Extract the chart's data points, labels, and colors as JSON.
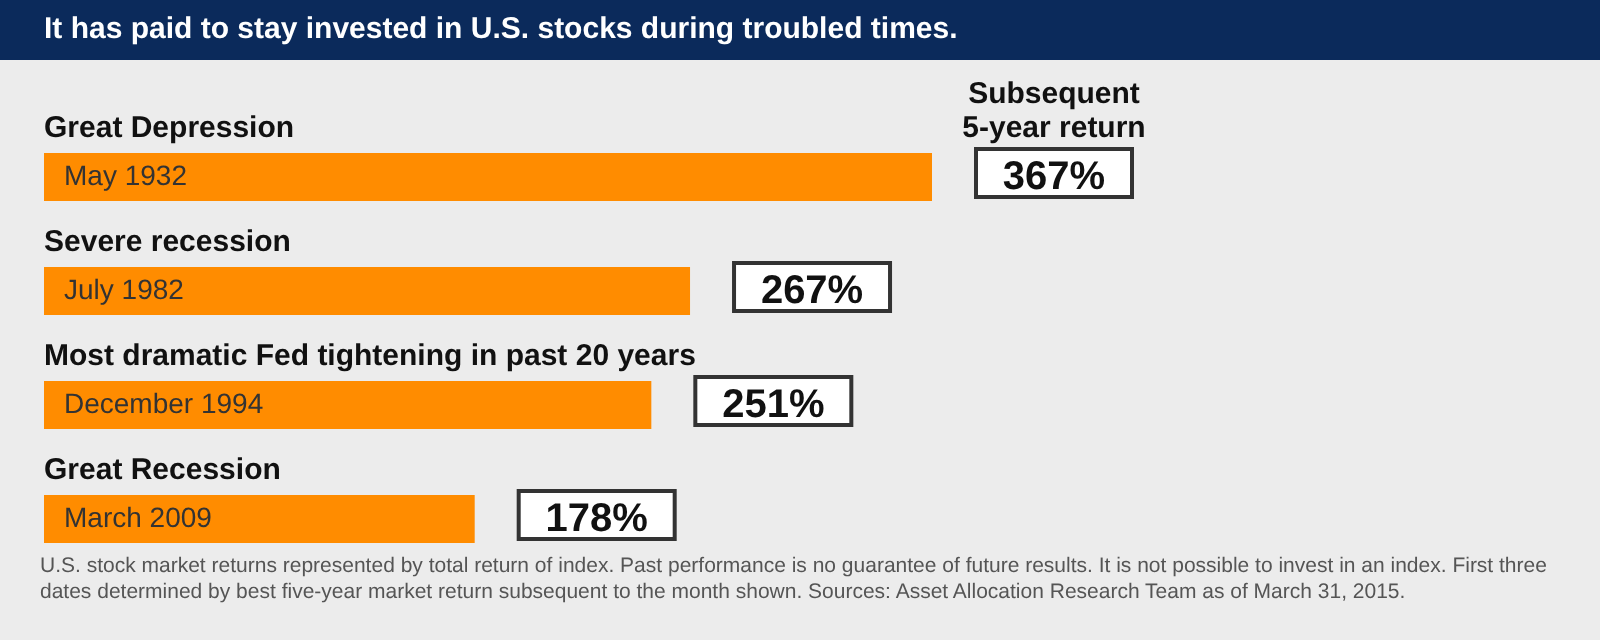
{
  "chart_data": {
    "type": "bar",
    "orientation": "horizontal",
    "title": "It has paid to stay invested in U.S. stocks during troubled times.",
    "categories": [
      "May 1932",
      "July 1982",
      "December 1994",
      "March 2009"
    ],
    "values": [
      367,
      267,
      251,
      178
    ],
    "value_labels": [
      "367%",
      "267%",
      "251%",
      "178%"
    ],
    "color": "#ff8c00",
    "annotations": [
      "Great Depression",
      "Severe recession",
      "Most dramatic Fed tightening in past 20 years",
      "Great Recession",
      "Subsequent 5-year return",
      "U.S. stock market returns represented by total return of index. Past performance is no guarantee of future results. It is not possible to invest in an index. First three dates determined by best five-year market return subsequent to the month shown. Sources: Asset Allocation Research Team as of March 31, 2015."
    ]
  }
}
